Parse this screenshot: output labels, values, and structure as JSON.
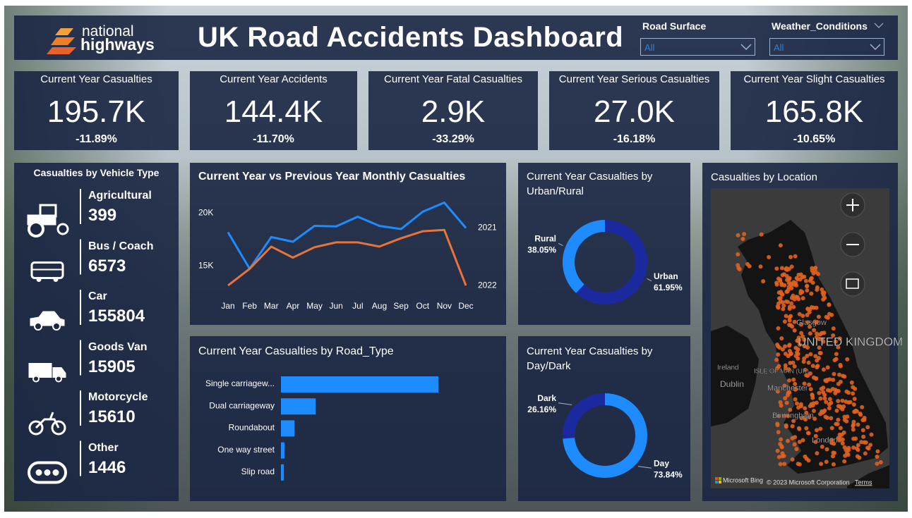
{
  "header": {
    "logo_line1": "national",
    "logo_line2": "highways",
    "title": "UK Road Accidents Dashboard"
  },
  "filters": [
    {
      "label": "Road Surface",
      "value": "All"
    },
    {
      "label": "Weather_Conditions",
      "value": "All"
    }
  ],
  "kpis": [
    {
      "title": "Current Year Casualties",
      "value": "195.7K",
      "change": "-11.89%"
    },
    {
      "title": "Current Year Accidents",
      "value": "144.4K",
      "change": "-11.70%"
    },
    {
      "title": "Current Year Fatal Casualties",
      "value": "2.9K",
      "change": "-33.29%"
    },
    {
      "title": "Current Year Serious Casualties",
      "value": "27.0K",
      "change": "-16.18%"
    },
    {
      "title": "Current Year Slight Casualties",
      "value": "165.8K",
      "change": "-10.65%"
    }
  ],
  "vehicle_panel": {
    "title": "Casualties by Vehicle Type",
    "items": [
      {
        "name": "Agricultural",
        "count": 399
      },
      {
        "name": "Bus / Coach",
        "count": 6573
      },
      {
        "name": "Car",
        "count": 155804
      },
      {
        "name": "Goods Van",
        "count": 15905
      },
      {
        "name": "Motorcycle",
        "count": 15610
      },
      {
        "name": "Other",
        "count": 1446
      }
    ]
  },
  "chart_data": [
    {
      "type": "line",
      "title": "Current Year vs Previous Year Monthly Casualties",
      "categories": [
        "Jan",
        "Feb",
        "Mar",
        "Apr",
        "May",
        "Jun",
        "Jul",
        "Aug",
        "Sep",
        "Oct",
        "Nov",
        "Dec"
      ],
      "series": [
        {
          "name": "2021",
          "color": "#1e8cff",
          "values": [
            18200,
            14740,
            17740,
            17300,
            18800,
            18750,
            19670,
            18800,
            18500,
            20130,
            21000,
            18600
          ]
        },
        {
          "name": "2022",
          "color": "#e8743b",
          "values": [
            13160,
            14740,
            16840,
            15800,
            16780,
            17240,
            17240,
            16840,
            17630,
            18290,
            18420,
            13160
          ]
        }
      ],
      "ylim": [
        12500,
        21500
      ],
      "yticks": [
        {
          "value": 15000,
          "label": "15K"
        },
        {
          "value": 20000,
          "label": "20K"
        }
      ],
      "grid": false
    },
    {
      "type": "hbar",
      "title": "Current Year Casualties by Road_Type",
      "categories": [
        "Single carriagew...",
        "Dual carriageway",
        "Roundabout",
        "One way street",
        "Slip road"
      ],
      "values": [
        145000,
        32000,
        12500,
        3300,
        2700
      ],
      "color": "#1e8cff",
      "xlim": [
        0,
        150000
      ]
    },
    {
      "type": "donut",
      "title": "Current Year Casualties by Urban/Rural",
      "categories": [
        "Urban",
        "Rural"
      ],
      "values": [
        61.95,
        38.05
      ],
      "value_labels": [
        "61.95%",
        "38.05%"
      ],
      "colors": [
        "#1a2a9e",
        "#1e8cff"
      ]
    },
    {
      "type": "donut",
      "title": "Current Year Casualties by Day/Dark",
      "categories": [
        "Day",
        "Dark"
      ],
      "values": [
        73.84,
        26.16
      ],
      "value_labels": [
        "73.84%",
        "26.16%"
      ],
      "colors": [
        "#1e8cff",
        "#1a2a9e"
      ]
    }
  ],
  "map": {
    "title": "Casualties by Location",
    "labels": [
      "Glasgow",
      "UNITED KINGDOM",
      "Ireland",
      "ISLE OF MAN (UK)",
      "Dublin",
      "Manchester",
      "Birmingham",
      "London"
    ],
    "attribution": "Microsoft Bing",
    "copyright": "© 2023 Microsoft Corporation",
    "terms": "Terms"
  }
}
